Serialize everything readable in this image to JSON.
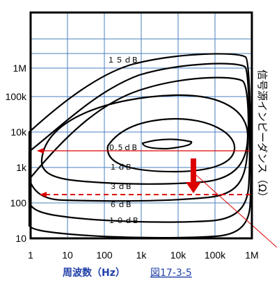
{
  "chart_data": {
    "type": "contour",
    "x_axis": {
      "scale": "log",
      "label": "周波数（Hz）",
      "ticks": [
        "1",
        "10",
        "100",
        "1k",
        "10k",
        "100k",
        "1M"
      ],
      "range": [
        1,
        1000000
      ]
    },
    "y_axis": {
      "scale": "log",
      "label": "信号源インピーダンス（Ω）",
      "ticks": [
        "10",
        "100",
        "1k",
        "10k",
        "100k",
        "1M"
      ],
      "range": [
        10,
        1000000
      ]
    },
    "grid": true,
    "contours": [
      {
        "label": "0.5ｄB",
        "center_x": 31623,
        "center_y": 10000
      },
      {
        "label": "１ｄB"
      },
      {
        "label": "３ｄB"
      },
      {
        "label": "６ｄB"
      },
      {
        "label": "１０ｄB"
      },
      {
        "label": "１５ｄB"
      }
    ],
    "annotations": [
      {
        "type": "arrow",
        "style": "solid",
        "color": "#dd0000",
        "from": [
          1000000,
          3200
        ],
        "to": [
          1,
          3200
        ]
      },
      {
        "type": "arrow",
        "style": "dashed",
        "color": "#dd0000",
        "from": [
          1000000,
          200
        ],
        "to": [
          1,
          200
        ]
      },
      {
        "type": "arrow",
        "style": "thick-down",
        "color": "#dd0000",
        "x": 31623,
        "from_y": 1700,
        "to_y": 200
      }
    ],
    "figure_ref": "図17-3-5"
  },
  "colors": {
    "grid": "#4a7fc0",
    "annotation": "#dd0000",
    "label_blue": "#1f3fa8"
  }
}
